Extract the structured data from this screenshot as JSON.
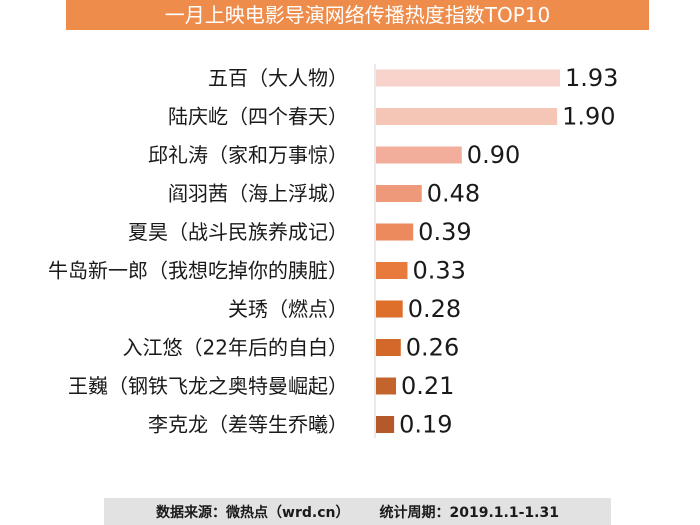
{
  "title": "一月上映电影导演网络传播热度指数TOP10",
  "footer": {
    "source": "数据来源：微热点（wrd.cn）",
    "period": "统计周期：2019.1.1-1.31"
  },
  "chart_data": {
    "type": "bar",
    "orientation": "horizontal",
    "title": "一月上映电影导演网络传播热度指数TOP10",
    "categories": [
      "五百（大人物）",
      "陆庆屹（四个春天）",
      "邱礼涛（家和万事惊）",
      "阎羽茜（海上浮城）",
      "夏昊（战斗民族养成记）",
      "牛岛新一郎（我想吃掉你的胰脏）",
      "关琇（燃点）",
      "入江悠（22年后的自白）",
      "王巍（钢铁飞龙之奥特曼崛起）",
      "李克龙（差等生乔曦）"
    ],
    "values": [
      1.93,
      1.9,
      0.9,
      0.48,
      0.39,
      0.33,
      0.28,
      0.26,
      0.21,
      0.19
    ],
    "value_labels": [
      "1.93",
      "1.90",
      "0.90",
      "0.48",
      "0.39",
      "0.33",
      "0.28",
      "0.26",
      "0.21",
      "0.19"
    ],
    "bar_colors": [
      "#f8d3cb",
      "#f5c5b6",
      "#f2ae9a",
      "#ee9a7a",
      "#ec8a5e",
      "#e77a3c",
      "#de6f2a",
      "#d2692a",
      "#c2642c",
      "#b3592a"
    ],
    "xlim": [
      0,
      1.93
    ],
    "grid": false,
    "legend": "none"
  }
}
